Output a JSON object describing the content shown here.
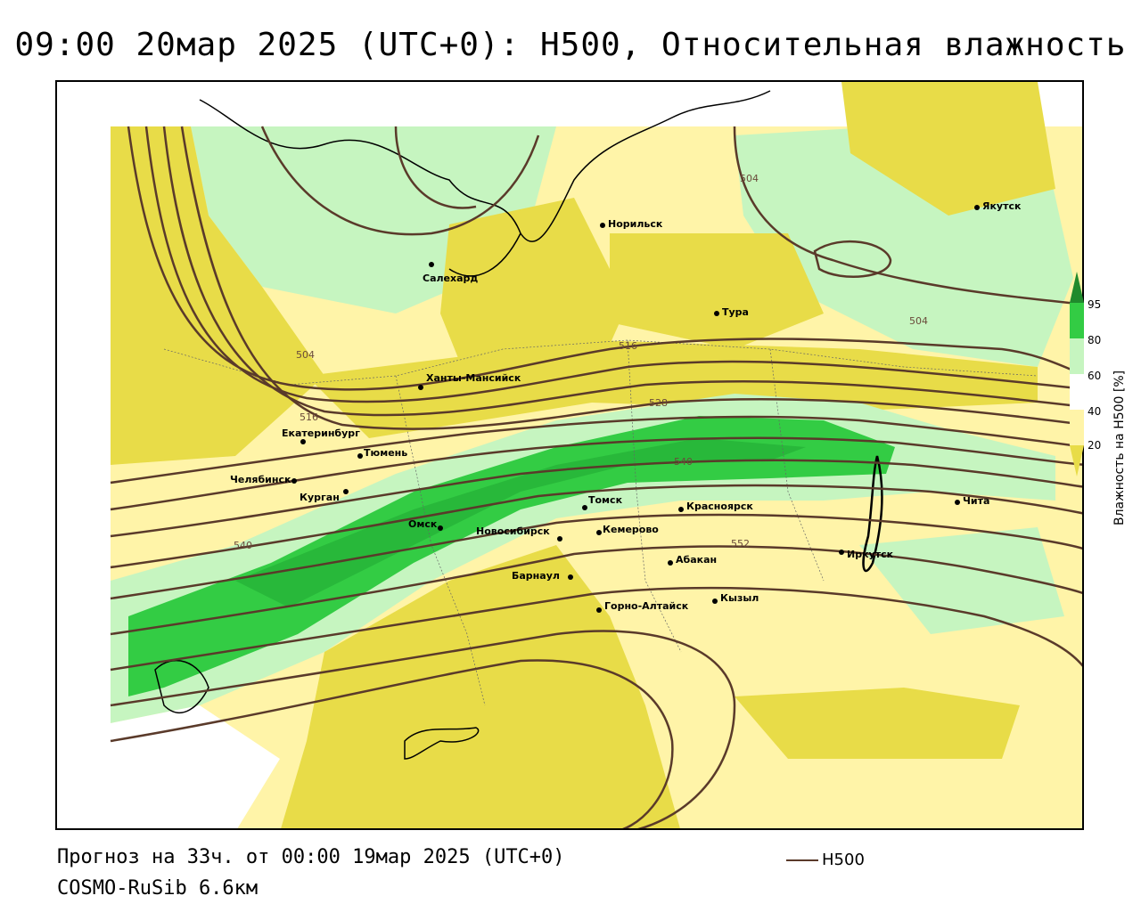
{
  "title": "09:00 20мар 2025 (UTC+0): H500, Относительная влажность",
  "footer": {
    "forecast": "Прогноз на 33ч. от 00:00 19мар 2025 (UTC+0)",
    "model": "COSMO-RuSib 6.6км"
  },
  "legend": {
    "line_label": "H500",
    "line_color": "#5a3a2a"
  },
  "colorbar": {
    "label": "Влажность на H500 [%]",
    "ticks": [
      "95",
      "80",
      "60",
      "40",
      "20"
    ],
    "colors": {
      "dark_green": "#1f8a2c",
      "green": "#33cc44",
      "light_green": "#c6f5c0",
      "white": "#ffffff",
      "light_yellow": "#fff4a8",
      "yellow": "#e8dc48",
      "olive": "#c8b820"
    }
  },
  "isohypse_labels": [
    "504",
    "504",
    "504",
    "516",
    "516",
    "528",
    "540",
    "540",
    "552"
  ],
  "cities": [
    {
      "name": "Салехард"
    },
    {
      "name": "Норильск"
    },
    {
      "name": "Якутск"
    },
    {
      "name": "Тура"
    },
    {
      "name": "Ханты-Мансийск"
    },
    {
      "name": "Екатеринбург"
    },
    {
      "name": "Тюмень"
    },
    {
      "name": "Челябинск"
    },
    {
      "name": "Курган"
    },
    {
      "name": "Омск"
    },
    {
      "name": "Новосибирск"
    },
    {
      "name": "Томск"
    },
    {
      "name": "Кемерово"
    },
    {
      "name": "Красноярск"
    },
    {
      "name": "Абакан"
    },
    {
      "name": "Барнаул"
    },
    {
      "name": "Горно-Алтайск"
    },
    {
      "name": "Кызыл"
    },
    {
      "name": "Иркутск"
    },
    {
      "name": "Чита"
    }
  ]
}
